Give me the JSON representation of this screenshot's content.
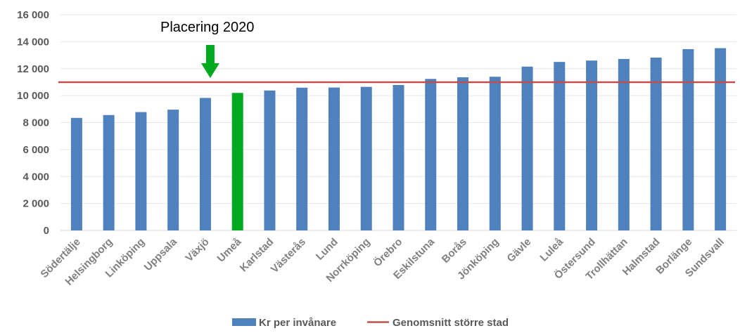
{
  "chart_data": {
    "type": "bar",
    "categories": [
      "Södertälje",
      "Helsingborg",
      "Linköping",
      "Uppsala",
      "Växjö",
      "Umeå",
      "Karlstad",
      "Västerås",
      "Lund",
      "Norrköping",
      "Örebro",
      "Eskilstuna",
      "Borås",
      "Jönköping",
      "Gävle",
      "Luleå",
      "Östersund",
      "Trollhättan",
      "Halmstad",
      "Borlänge",
      "Sundsvall"
    ],
    "series": [
      {
        "name": "Kr per invånare",
        "values": [
          8350,
          8560,
          8780,
          8960,
          9830,
          10200,
          10380,
          10590,
          10600,
          10650,
          10790,
          11240,
          11360,
          11400,
          12150,
          12500,
          12600,
          12720,
          12820,
          13450,
          13520
        ],
        "color": "#4f81bd"
      }
    ],
    "highlight": {
      "category": "Umeå",
      "color": "#00a91f"
    },
    "reference_line": {
      "name": "Genomsnitt större stad",
      "value": 11000,
      "color": "#c0504d"
    },
    "annotation": {
      "text": "Placering 2020",
      "target_category": "Växjö",
      "arrow_color": "#00a91f"
    },
    "yticks": [
      "0",
      "2 000",
      "4 000",
      "6 000",
      "8 000",
      "10 000",
      "12 000",
      "14 000",
      "16 000"
    ],
    "ylim": [
      0,
      16000
    ],
    "grid": true,
    "legend_position": "bottom",
    "title": "",
    "xlabel": "",
    "ylabel": ""
  }
}
